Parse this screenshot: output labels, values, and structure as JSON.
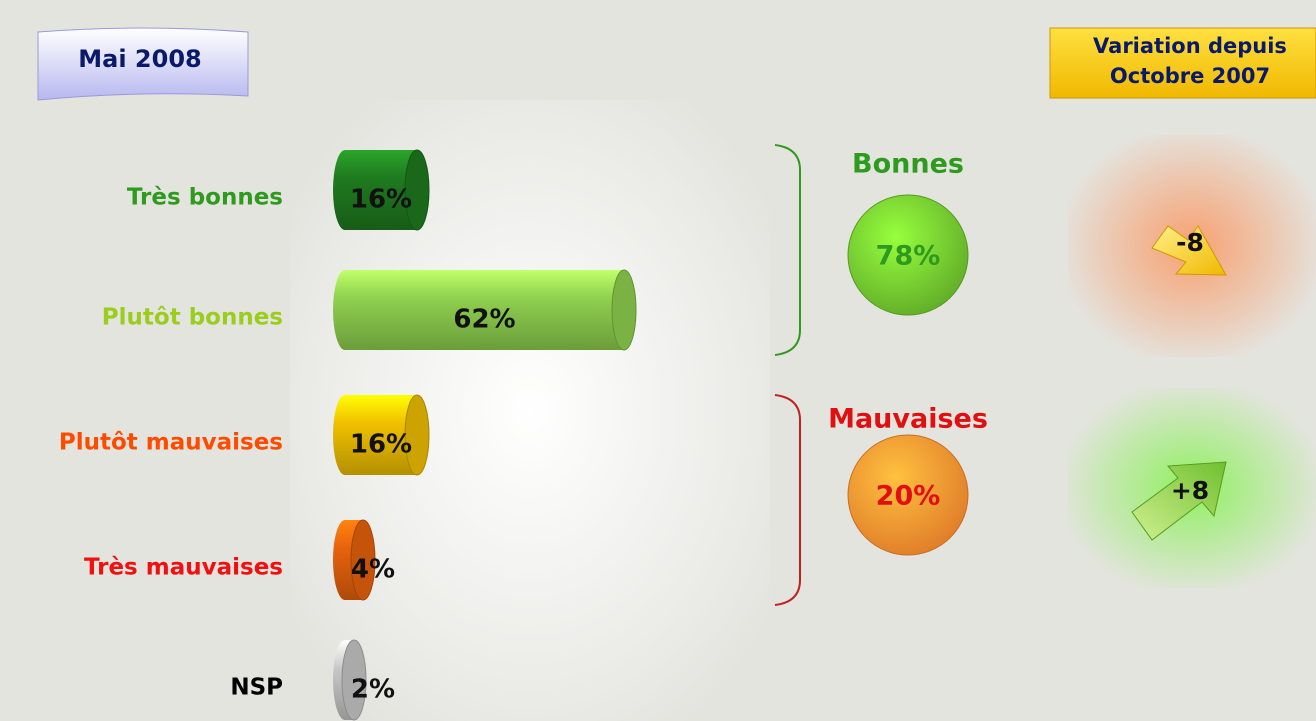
{
  "chart_data": {
    "type": "bar",
    "orientation": "horizontal",
    "title": "Mai 2008",
    "categories": [
      "Très bonnes",
      "Plutôt bonnes",
      "Plutôt mauvaises",
      "Très mauvaises",
      "NSP"
    ],
    "values": [
      16,
      62,
      16,
      4,
      2
    ],
    "value_labels": [
      "16%",
      "62%",
      "16%",
      "4%",
      "2%"
    ],
    "colors": [
      "#1f7a1f",
      "#8fd14f",
      "#f0c000",
      "#e8620c",
      "#c8c8c8"
    ],
    "category_colors": [
      "#2e9a1e",
      "#9acd1e",
      "#ff4b00",
      "#f01010",
      "#000000"
    ],
    "groups": [
      {
        "label": "Bonnes",
        "value": 78,
        "value_label": "78%",
        "color": "#6cbf2c",
        "text_color": "#2e9a1e"
      },
      {
        "label": "Mauvaises",
        "value": 20,
        "value_label": "20%",
        "color": "#f98a2e",
        "text_color": "#e01010"
      }
    ],
    "variation": {
      "title": [
        "Variation depuis",
        "Octobre 2007"
      ],
      "values": [
        -8,
        8
      ],
      "value_labels": [
        "-8",
        "+8"
      ]
    }
  }
}
